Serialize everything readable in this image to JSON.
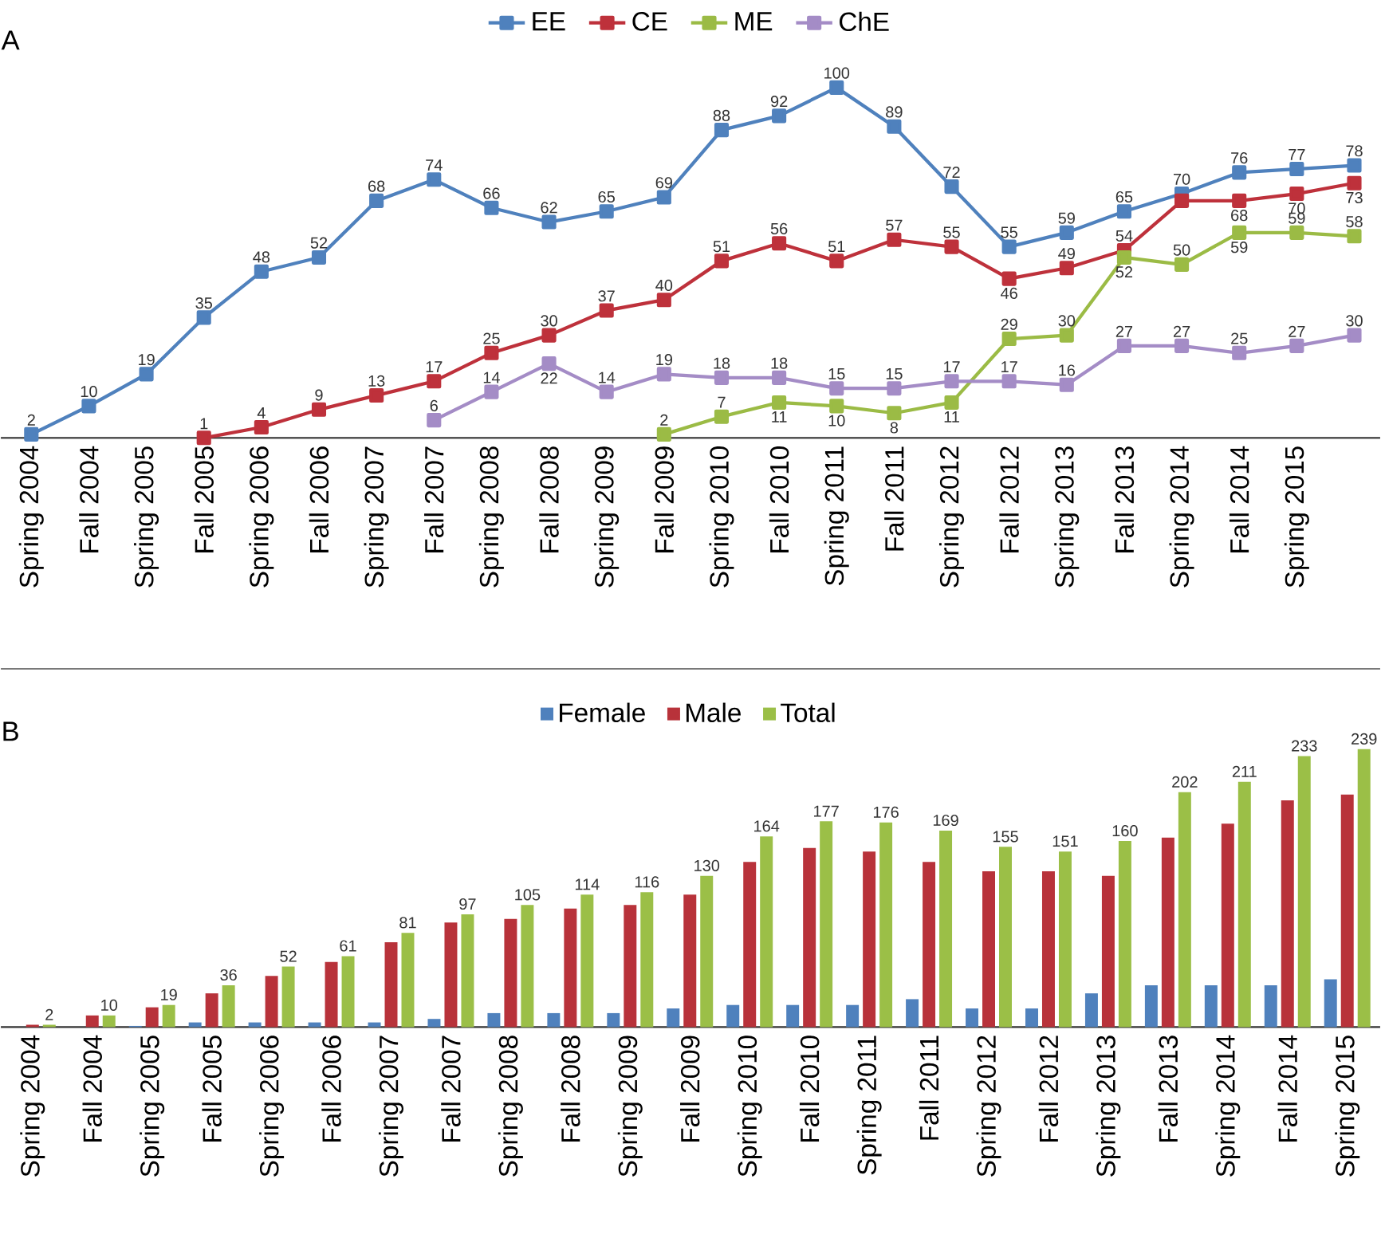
{
  "chart_data": [
    {
      "type": "line",
      "annotations": [
        "A"
      ],
      "legend": "top",
      "marker": "square",
      "line_style": "solid",
      "categories": [
        "Spring 2004",
        "Fall 2004",
        "Spring 2005",
        "Fall 2005",
        "Spring 2006",
        "Fall 2006",
        "Spring 2007",
        "Fall 2007",
        "Spring 2008",
        "Fall 2008",
        "Spring 2009",
        "Fall 2009",
        "Spring 2010",
        "Fall 2010",
        "Spring 2011",
        "Fall 2011",
        "Spring 2012",
        "Fall 2012",
        "Spring 2013",
        "Fall 2013",
        "Spring 2014",
        "Fall 2014",
        "Spring 2015",
        null
      ],
      "series": [
        {
          "name": "EE",
          "color": "#4f81bd",
          "values": [
            2,
            10,
            19,
            35,
            48,
            52,
            68,
            74,
            66,
            62,
            65,
            69,
            88,
            92,
            100,
            89,
            72,
            55,
            59,
            65,
            70,
            76,
            77,
            78
          ],
          "value_labels": [
            "2",
            "10",
            "19",
            "35",
            "48",
            "52",
            "68",
            "74",
            "66",
            "62",
            "65",
            "69",
            "88",
            "92",
            "100",
            "89",
            "72",
            "55",
            "59",
            "65",
            "70",
            "76",
            "77",
            "78"
          ]
        },
        {
          "name": "CE",
          "color": "#be313b",
          "values": [
            null,
            null,
            null,
            1,
            4,
            9,
            13,
            17,
            25,
            30,
            37,
            40,
            51,
            56,
            51,
            57,
            55,
            46,
            49,
            54,
            68,
            68,
            70,
            73
          ],
          "value_labels": [
            null,
            null,
            null,
            "1",
            "4",
            "9",
            "13",
            "17",
            "25",
            "30",
            "37",
            "40",
            "51",
            "56",
            "51",
            "57",
            "55",
            "46",
            "49",
            "54",
            null,
            "68",
            "70",
            "73"
          ]
        },
        {
          "name": "ME",
          "color": "#9bbb45",
          "values": [
            null,
            null,
            null,
            null,
            null,
            null,
            null,
            null,
            null,
            null,
            null,
            2,
            7,
            11,
            10,
            8,
            11,
            29,
            30,
            52,
            50,
            59,
            59,
            58
          ],
          "value_labels": [
            null,
            null,
            null,
            null,
            null,
            null,
            null,
            null,
            null,
            null,
            null,
            "2",
            "7",
            "11",
            "10",
            "8",
            "11",
            "29",
            "30",
            "52",
            "50",
            "59",
            "59",
            "58"
          ]
        },
        {
          "name": "ChE",
          "color": "#a48cc6",
          "values": [
            null,
            null,
            null,
            null,
            null,
            null,
            null,
            6,
            14,
            22,
            14,
            19,
            18,
            18,
            15,
            15,
            17,
            17,
            16,
            27,
            27,
            25,
            27,
            30
          ],
          "value_labels": [
            null,
            null,
            null,
            null,
            null,
            null,
            null,
            "6",
            "14",
            "22",
            "14",
            "19",
            "18",
            "18",
            "15",
            "15",
            "17",
            "17",
            "16",
            "27",
            "27",
            "25",
            "27",
            "30"
          ]
        }
      ]
    },
    {
      "type": "bar",
      "annotations": [
        "B"
      ],
      "legend": "top",
      "categories": [
        "Spring 2004",
        "Fall 2004",
        "Spring 2005",
        "Fall 2005",
        "Spring 2006",
        "Fall 2006",
        "Spring 2007",
        "Fall 2007",
        "Spring 2008",
        "Fall 2008",
        "Spring 2009",
        "Fall 2009",
        "Spring 2010",
        "Fall 2010",
        "Spring 2011",
        "Fall 2011",
        "Spring 2012",
        "Fall 2012",
        "Spring 2013",
        "Fall 2013",
        "Spring 2014",
        "Fall 2014",
        "Spring 2015"
      ],
      "series": [
        {
          "name": "Female",
          "color": "#4f81bd",
          "values": [
            0,
            0,
            1,
            4,
            4,
            4,
            4,
            7,
            12,
            12,
            12,
            16,
            19,
            19,
            19,
            24,
            16,
            16,
            29,
            36,
            36,
            36,
            41
          ]
        },
        {
          "name": "Male",
          "color": "#b8323a",
          "values": [
            2,
            10,
            17,
            29,
            44,
            56,
            73,
            90,
            93,
            102,
            105,
            114,
            142,
            154,
            151,
            142,
            134,
            134,
            130,
            163,
            175,
            195,
            200
          ]
        },
        {
          "name": "Total",
          "color": "#9bbf47",
          "values": [
            2,
            10,
            19,
            36,
            52,
            61,
            81,
            97,
            105,
            114,
            116,
            130,
            164,
            177,
            176,
            169,
            155,
            151,
            160,
            202,
            211,
            233,
            239
          ],
          "value_labels": [
            "2",
            "10",
            "19",
            "36",
            "52",
            "61",
            "81",
            "97",
            "105",
            "114",
            "116",
            "130",
            "164",
            "177",
            "176",
            "169",
            "155",
            "151",
            "160",
            "202",
            "211",
            "233",
            "239"
          ]
        }
      ]
    }
  ]
}
